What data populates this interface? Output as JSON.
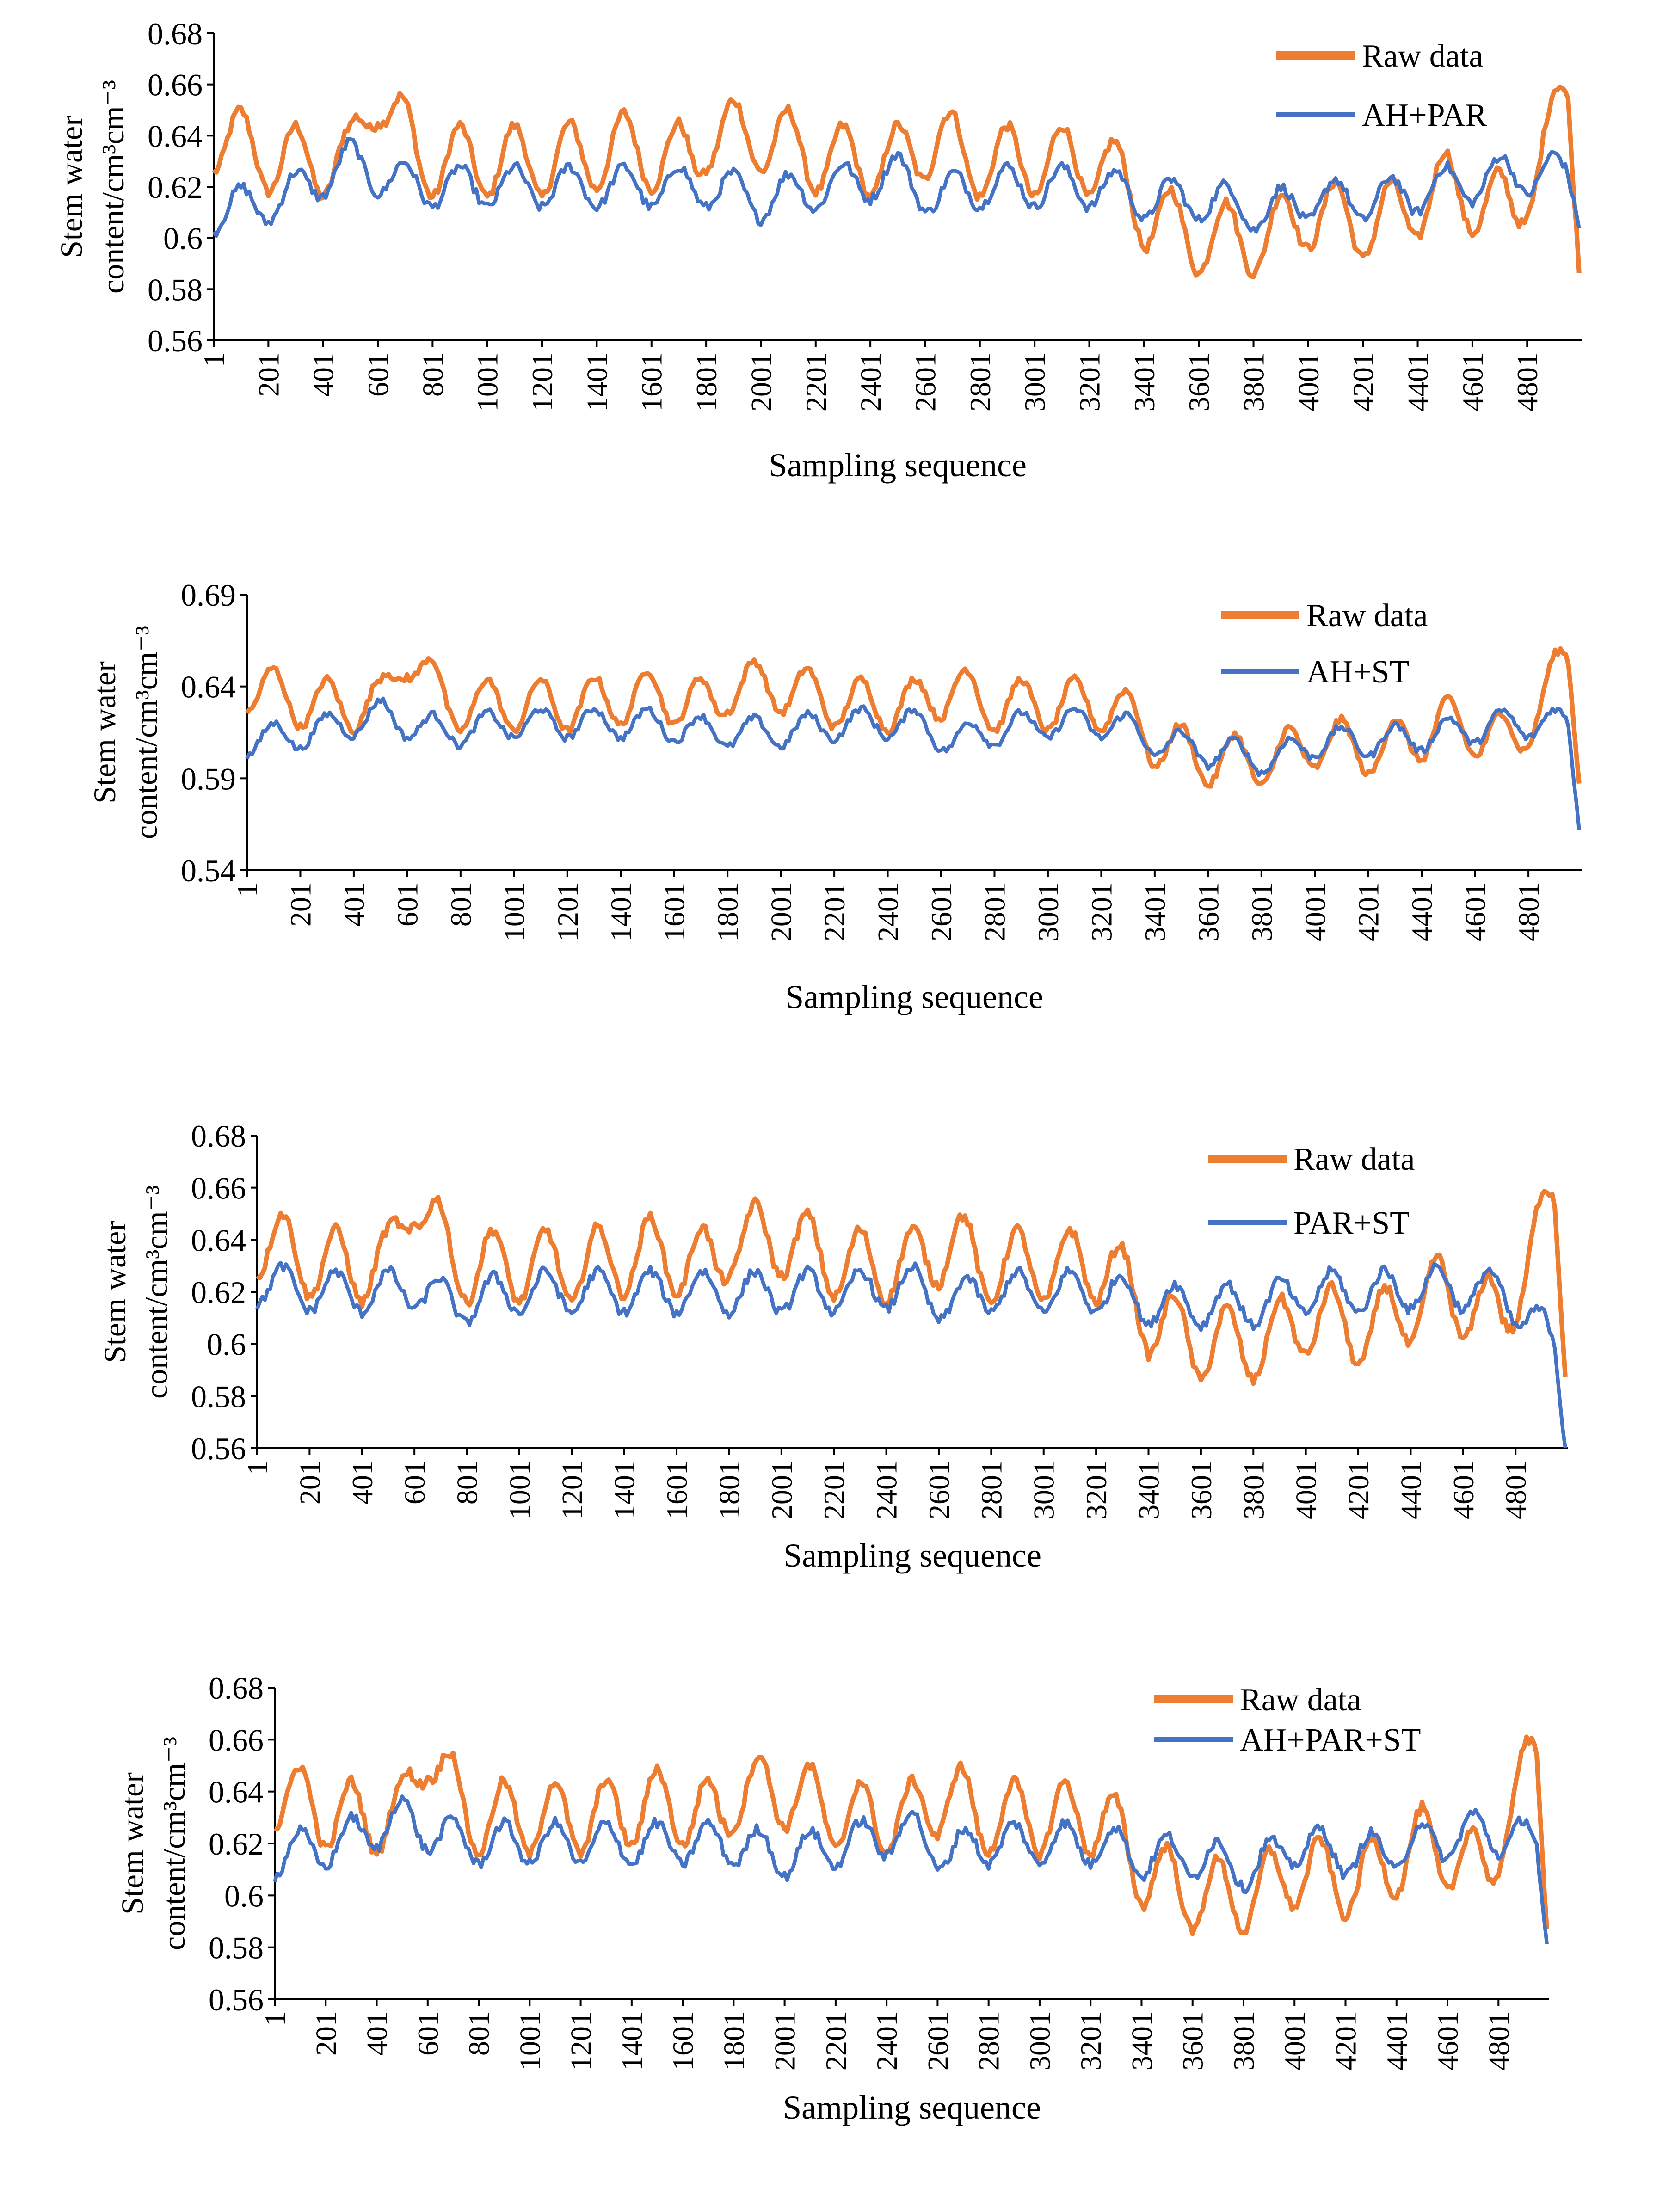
{
  "charts": [
    {
      "type": "line",
      "ylabel_line1": "Stem water",
      "ylabel_line2": "content/cm³cm⁻³",
      "xlabel": "Sampling sequence",
      "ylim": [
        0.56,
        0.68
      ],
      "yticks": [
        "0.56",
        "0.58",
        "0.6",
        "0.62",
        "0.64",
        "0.66",
        "0.68"
      ],
      "legend_placement": "top-right",
      "series": [
        {
          "name": "Raw data",
          "color": "#ED7D31"
        },
        {
          "name": "AH+PAR",
          "color": "#4472C4"
        }
      ]
    },
    {
      "type": "line",
      "ylabel_line1": "Stem water",
      "ylabel_line2": "content/cm³cm⁻³",
      "xlabel": "Sampling sequence",
      "ylim": [
        0.54,
        0.69
      ],
      "yticks": [
        "0.54",
        "0.59",
        "0.64",
        "0.69"
      ],
      "legend_placement": "top-right",
      "series": [
        {
          "name": "Raw data",
          "color": "#ED7D31"
        },
        {
          "name": "AH+ST",
          "color": "#4472C4"
        }
      ]
    },
    {
      "type": "line",
      "ylabel_line1": "Stem water",
      "ylabel_line2": "content/cm³cm⁻³",
      "xlabel": "Sampling sequence",
      "ylim": [
        0.56,
        0.68
      ],
      "yticks": [
        "0.56",
        "0.58",
        "0.6",
        "0.62",
        "0.64",
        "0.66",
        "0.68"
      ],
      "legend_placement": "top-right",
      "series": [
        {
          "name": "Raw data",
          "color": "#ED7D31"
        },
        {
          "name": "PAR+ST",
          "color": "#4472C4"
        }
      ]
    },
    {
      "type": "line",
      "ylabel_line1": "Stem water",
      "ylabel_line2": "content/cm³cm⁻³",
      "xlabel": "Sampling sequence",
      "ylim": [
        0.56,
        0.68
      ],
      "yticks": [
        "0.56",
        "0.58",
        "0.6",
        "0.62",
        "0.64",
        "0.66",
        "0.68"
      ],
      "legend_placement": "top-right",
      "series": [
        {
          "name": "Raw data",
          "color": "#ED7D31"
        },
        {
          "name": "AH+PAR+ST",
          "color": "#4472C4"
        }
      ]
    }
  ],
  "xticks": [
    "1",
    "201",
    "401",
    "601",
    "801",
    "1001",
    "1201",
    "1401",
    "1601",
    "1801",
    "2001",
    "2201",
    "2401",
    "2601",
    "2801",
    "3001",
    "3201",
    "3401",
    "3601",
    "3801",
    "4001",
    "4201",
    "4401",
    "4601",
    "4801"
  ],
  "chart_data": [
    {
      "type": "line",
      "xlabel": "Sampling sequence",
      "ylabel": "Stem water content/cm³cm⁻³",
      "ylim": [
        0.56,
        0.68
      ],
      "xlim": [
        1,
        5000
      ],
      "grid": false,
      "legend": "top-right",
      "x": [
        1,
        250,
        500,
        600,
        750,
        1000,
        1250,
        1500,
        1750,
        1800,
        2000,
        2250,
        2500,
        2650,
        2750,
        3000,
        3250,
        3400,
        3600,
        3850,
        4000,
        4250,
        4500,
        4750,
        4950,
        5000
      ],
      "series": [
        {
          "name": "Raw data",
          "values": [
            0.64,
            0.63,
            0.63,
            0.66,
            0.63,
            0.63,
            0.63,
            0.635,
            0.63,
            0.64,
            0.64,
            0.63,
            0.63,
            0.64,
            0.63,
            0.63,
            0.63,
            0.61,
            0.6,
            0.6,
            0.61,
            0.605,
            0.62,
            0.61,
            0.655,
            0.59
          ]
        },
        {
          "name": "AH+PAR",
          "values": [
            0.61,
            0.615,
            0.63,
            0.625,
            0.62,
            0.62,
            0.62,
            0.62,
            0.62,
            0.62,
            0.615,
            0.62,
            0.625,
            0.615,
            0.62,
            0.62,
            0.62,
            0.615,
            0.615,
            0.61,
            0.615,
            0.615,
            0.62,
            0.625,
            0.625,
            0.61
          ]
        }
      ]
    },
    {
      "type": "line",
      "xlabel": "Sampling sequence",
      "ylabel": "Stem water content/cm³cm⁻³",
      "ylim": [
        0.54,
        0.69
      ],
      "xlim": [
        1,
        5000
      ],
      "grid": false,
      "legend": "top-right",
      "x": [
        1,
        250,
        500,
        600,
        750,
        1000,
        1250,
        1500,
        1750,
        1800,
        2000,
        2250,
        2500,
        2650,
        2750,
        3000,
        3250,
        3400,
        3600,
        3850,
        4000,
        4250,
        4500,
        4750,
        4950,
        5000
      ],
      "series": [
        {
          "name": "Raw data",
          "values": [
            0.64,
            0.63,
            0.63,
            0.66,
            0.63,
            0.63,
            0.63,
            0.635,
            0.63,
            0.64,
            0.64,
            0.63,
            0.63,
            0.64,
            0.63,
            0.63,
            0.63,
            0.61,
            0.6,
            0.6,
            0.61,
            0.605,
            0.62,
            0.61,
            0.655,
            0.59
          ]
        },
        {
          "name": "AH+ST",
          "values": [
            0.61,
            0.615,
            0.625,
            0.62,
            0.615,
            0.62,
            0.62,
            0.62,
            0.615,
            0.615,
            0.615,
            0.62,
            0.62,
            0.61,
            0.615,
            0.62,
            0.62,
            0.61,
            0.605,
            0.6,
            0.61,
            0.61,
            0.615,
            0.62,
            0.62,
            0.56
          ]
        }
      ]
    },
    {
      "type": "line",
      "xlabel": "Sampling sequence",
      "ylabel": "Stem water content/cm³cm⁻³",
      "ylim": [
        0.56,
        0.68
      ],
      "xlim": [
        1,
        5000
      ],
      "grid": false,
      "legend": "top-right",
      "x": [
        1,
        250,
        500,
        600,
        750,
        1000,
        1250,
        1500,
        1750,
        1800,
        2000,
        2250,
        2500,
        2650,
        2750,
        3000,
        3250,
        3400,
        3600,
        3850,
        4000,
        4250,
        4500,
        4750,
        4950,
        5000
      ],
      "series": [
        {
          "name": "Raw data",
          "values": [
            0.64,
            0.63,
            0.63,
            0.66,
            0.63,
            0.63,
            0.63,
            0.635,
            0.63,
            0.64,
            0.64,
            0.63,
            0.63,
            0.64,
            0.63,
            0.63,
            0.63,
            0.61,
            0.6,
            0.6,
            0.61,
            0.605,
            0.62,
            0.61,
            0.655,
            0.59
          ]
        },
        {
          "name": "PAR+ST",
          "values": [
            0.623,
            0.62,
            0.62,
            0.622,
            0.615,
            0.62,
            0.62,
            0.62,
            0.62,
            0.62,
            0.62,
            0.62,
            0.622,
            0.615,
            0.62,
            0.62,
            0.62,
            0.615,
            0.615,
            0.615,
            0.62,
            0.62,
            0.622,
            0.62,
            0.6,
            0.56
          ]
        }
      ]
    },
    {
      "type": "line",
      "xlabel": "Sampling sequence",
      "ylabel": "Stem water content/cm³cm⁻³",
      "ylim": [
        0.56,
        0.68
      ],
      "xlim": [
        1,
        5000
      ],
      "grid": false,
      "legend": "top-right",
      "x": [
        1,
        250,
        500,
        600,
        750,
        1000,
        1250,
        1500,
        1750,
        1800,
        2000,
        2250,
        2500,
        2650,
        2750,
        3000,
        3250,
        3400,
        3600,
        3850,
        4000,
        4250,
        4500,
        4750,
        4950,
        5000
      ],
      "series": [
        {
          "name": "Raw data",
          "values": [
            0.64,
            0.63,
            0.63,
            0.66,
            0.63,
            0.63,
            0.63,
            0.635,
            0.63,
            0.64,
            0.64,
            0.63,
            0.63,
            0.64,
            0.63,
            0.63,
            0.63,
            0.61,
            0.6,
            0.6,
            0.61,
            0.605,
            0.62,
            0.61,
            0.655,
            0.59
          ]
        },
        {
          "name": "AH+PAR+ST",
          "values": [
            0.615,
            0.62,
            0.63,
            0.625,
            0.62,
            0.62,
            0.62,
            0.62,
            0.62,
            0.62,
            0.615,
            0.62,
            0.625,
            0.615,
            0.62,
            0.62,
            0.62,
            0.615,
            0.615,
            0.61,
            0.62,
            0.615,
            0.62,
            0.625,
            0.62,
            0.58
          ]
        }
      ]
    }
  ]
}
